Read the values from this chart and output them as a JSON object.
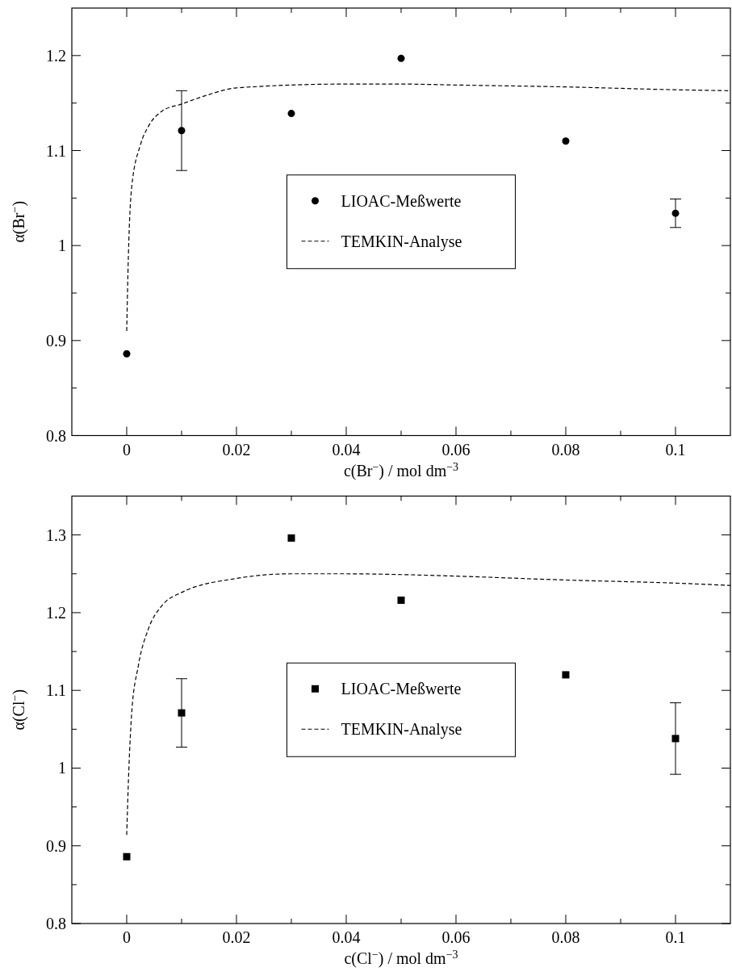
{
  "chart_data": [
    {
      "type": "scatter",
      "xlabel": "c(Br$^{−}$) / mol dm$^{−3}$",
      "ylabel": "α(Br$^{−}$)",
      "xlim": [
        -0.01,
        0.11
      ],
      "ylim": [
        0.8,
        1.25
      ],
      "xticks": [
        0,
        {
          "value": 0.01,
          "label": null
        },
        0.02,
        {
          "value": 0.03,
          "label": null
        },
        0.04,
        {
          "value": 0.05,
          "label": null
        },
        0.06,
        {
          "value": 0.07,
          "label": null
        },
        0.08,
        {
          "value": 0.09,
          "label": null
        },
        0.1
      ],
      "yticks": [
        0.8,
        {
          "value": 0.85,
          "label": null
        },
        0.9,
        {
          "value": 0.95,
          "label": null
        },
        1,
        {
          "value": 1.05,
          "label": null
        },
        1.1,
        {
          "value": 1.15,
          "label": null
        },
        1.2
      ],
      "grid": false,
      "legend": "center",
      "series": [
        {
          "name": "LIOAC-Meßwerte",
          "marker": "circle",
          "color": "#000000",
          "x": [
            0,
            0.01,
            0.03,
            0.05,
            0.08,
            0.1
          ],
          "values": [
            0.886,
            1.121,
            1.139,
            1.197,
            1.11,
            1.034
          ],
          "errors": [
            null,
            0.042,
            null,
            null,
            null,
            0.015
          ]
        },
        {
          "name": "TEMKIN-Analyse",
          "type": "line",
          "line_style": "dashed",
          "color": "#000000",
          "x": [
            0,
            0.0003,
            0.0009,
            0.0025,
            0.004,
            0.0063,
            0.01,
            0.015,
            0.02,
            0.04,
            0.05,
            0.06,
            0.08,
            0.1,
            0.11
          ],
          "values": [
            0.91,
            0.988,
            1.061,
            1.106,
            1.126,
            1.141,
            1.149,
            1.159,
            1.166,
            1.17,
            1.17,
            1.169,
            1.167,
            1.164,
            1.163
          ]
        }
      ]
    },
    {
      "type": "scatter",
      "xlabel": "c(Cl$^{−}$) / mol dm$^{−3}$",
      "ylabel": "α(Cl$^{−}$)",
      "xlim": [
        -0.01,
        0.11
      ],
      "ylim": [
        0.8,
        1.35
      ],
      "xticks": [
        0,
        {
          "value": 0.01,
          "label": null
        },
        0.02,
        {
          "value": 0.03,
          "label": null
        },
        0.04,
        {
          "value": 0.05,
          "label": null
        },
        0.06,
        {
          "value": 0.07,
          "label": null
        },
        0.08,
        {
          "value": 0.09,
          "label": null
        },
        0.1
      ],
      "yticks": [
        0.8,
        {
          "value": 0.85,
          "label": null
        },
        0.9,
        {
          "value": 0.95,
          "label": null
        },
        1,
        {
          "value": 1.05,
          "label": null
        },
        1.1,
        {
          "value": 1.15,
          "label": null
        },
        1.2,
        {
          "value": 1.25,
          "label": null
        },
        1.3
      ],
      "grid": false,
      "legend": "center",
      "series": [
        {
          "name": "LIOAC-Meßwerte",
          "marker": "square",
          "color": "#000000",
          "x": [
            0,
            0.01,
            0.03,
            0.05,
            0.08,
            0.1
          ],
          "values": [
            0.886,
            1.071,
            1.296,
            1.216,
            1.12,
            1.038
          ],
          "errors": [
            null,
            0.044,
            null,
            null,
            null,
            0.046
          ]
        },
        {
          "name": "TEMKIN-Analyse",
          "type": "line",
          "line_style": "dashed",
          "color": "#000000",
          "x": [
            0,
            0.0003,
            0.0009,
            0.0021,
            0.004,
            0.0063,
            0.01,
            0.02,
            0.03,
            0.04,
            0.05,
            0.06,
            0.08,
            0.1,
            0.11
          ],
          "values": [
            0.914,
            0.981,
            1.07,
            1.131,
            1.18,
            1.208,
            1.226,
            1.244,
            1.25,
            1.25,
            1.249,
            1.247,
            1.242,
            1.238,
            1.235
          ]
        }
      ]
    }
  ]
}
